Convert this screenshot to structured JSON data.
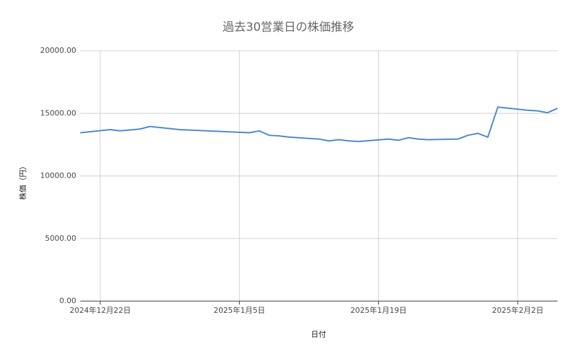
{
  "chart_data": {
    "type": "line",
    "title": "過去30営業日の株価推移",
    "x_label": "日付",
    "y_label": "株価（円）",
    "x": [
      "2024-12-20",
      "2024-12-23",
      "2024-12-24",
      "2024-12-26",
      "2024-12-27",
      "2024-12-30",
      "2025-01-06",
      "2025-01-07",
      "2025-01-08",
      "2025-01-09",
      "2025-01-10",
      "2025-01-13",
      "2025-01-14",
      "2025-01-15",
      "2025-01-16",
      "2025-01-17",
      "2025-01-20",
      "2025-01-21",
      "2025-01-22",
      "2025-01-23",
      "2025-01-24",
      "2025-01-27",
      "2025-01-28",
      "2025-01-29",
      "2025-01-30",
      "2025-01-31",
      "2025-02-03",
      "2025-02-04",
      "2025-02-05",
      "2025-02-06"
    ],
    "series": [
      {
        "name": "株価",
        "color": "#4a86d4",
        "values": [
          13450,
          13700,
          13600,
          13750,
          13950,
          13700,
          13450,
          13600,
          13250,
          13200,
          13100,
          12950,
          12800,
          12900,
          12800,
          12750,
          12950,
          12850,
          13050,
          12950,
          12900,
          12950,
          13250,
          13400,
          13100,
          15500,
          15250,
          15200,
          15050,
          15400
        ]
      }
    ],
    "xlim": [
      "2024-12-20",
      "2025-02-06"
    ],
    "xticks": [
      {
        "value": "2024-12-22",
        "label": "2024年12月22日"
      },
      {
        "value": "2025-01-05",
        "label": "2025年1月5日"
      },
      {
        "value": "2025-01-19",
        "label": "2025年1月19日"
      },
      {
        "value": "2025-02-02",
        "label": "2025年2月2日"
      }
    ],
    "ylim": [
      0,
      20000
    ],
    "yticks": [
      {
        "value": 0,
        "label": "0.00"
      },
      {
        "value": 5000,
        "label": "5000.00"
      },
      {
        "value": 10000,
        "label": "10000.00"
      },
      {
        "value": 15000,
        "label": "15000.00"
      },
      {
        "value": 20000,
        "label": "20000.00"
      }
    ],
    "grid": true
  }
}
